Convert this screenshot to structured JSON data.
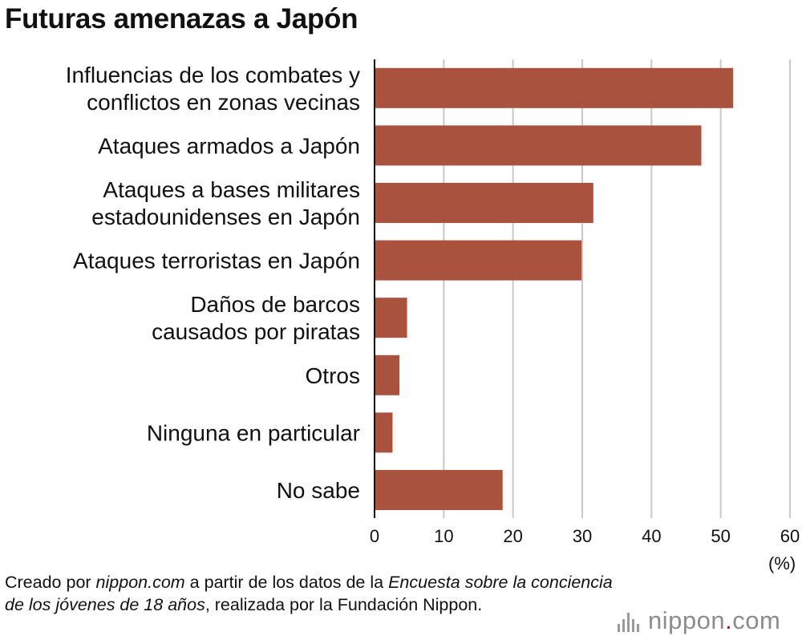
{
  "title": "Futuras amenazas a Japón",
  "unit_label": "(%)",
  "source": {
    "prefix": "Creado por ",
    "site": "nippon.com",
    "mid": " a partir de los datos de la ",
    "survey": "Encuesta sobre la conciencia de los jóvenes de 18 años",
    "suffix": ", realizada por la Fundación Nippon."
  },
  "logo": {
    "name": "nippon",
    "dot": ".",
    "tld": "com",
    "icon": "sound-bars-icon"
  },
  "colors": {
    "bar": "#a9533e",
    "grid": "#c8c8c8",
    "axis": "#111111",
    "logo_dot": "#c8102e"
  },
  "chart_data": {
    "type": "bar",
    "orientation": "horizontal",
    "categories": [
      [
        "Influencias de los combates y",
        "conflictos en zonas vecinas"
      ],
      [
        "Ataques armados a Japón"
      ],
      [
        "Ataques a bases militares",
        "estadounidenses en Japón"
      ],
      [
        "Ataques terroristas en Japón"
      ],
      [
        "Daños de barcos",
        "causados por piratas"
      ],
      [
        "Otros"
      ],
      [
        "Ninguna en particular"
      ],
      [
        "No sabe"
      ]
    ],
    "values": [
      51.8,
      47.2,
      31.6,
      29.9,
      4.7,
      3.6,
      2.6,
      18.5
    ],
    "xlim": [
      0,
      60
    ],
    "ticks": [
      0,
      10,
      20,
      30,
      40,
      50,
      60
    ],
    "grid": true
  }
}
